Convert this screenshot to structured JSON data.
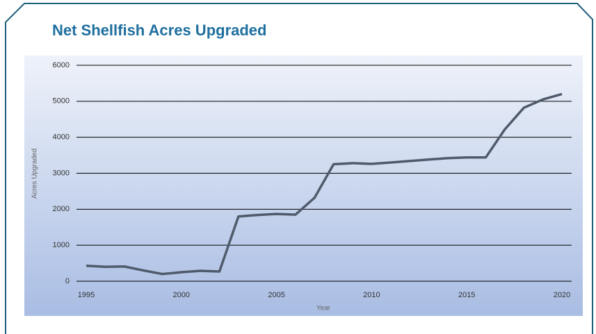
{
  "chart_data": {
    "type": "line",
    "title": "Net Shellfish Acres Upgraded",
    "x_label": "Year",
    "y_label": "Acres Upgraded",
    "x": [
      1995,
      1996,
      1997,
      1998,
      1999,
      2000,
      2001,
      2002,
      2003,
      2004,
      2005,
      2006,
      2007,
      2008,
      2009,
      2010,
      2011,
      2012,
      2013,
      2014,
      2015,
      2016,
      2017,
      2018,
      2019,
      2020
    ],
    "series": [
      {
        "name": "Net Shellfish Acres Upgraded",
        "color": "#4f5a6b",
        "values": [
          430,
          400,
          410,
          300,
          200,
          250,
          290,
          270,
          1800,
          1840,
          1870,
          1850,
          2320,
          3250,
          3280,
          3260,
          3300,
          3340,
          3380,
          3420,
          3440,
          3440,
          4220,
          4820,
          5050,
          5200
        ]
      }
    ],
    "xlim": [
      1995,
      2020
    ],
    "xticks": [
      1995,
      2000,
      2005,
      2010,
      2015,
      2020
    ],
    "ylim": [
      0,
      6000
    ],
    "yticks": [
      0,
      1000,
      2000,
      3000,
      4000,
      5000,
      6000
    ],
    "grid": true
  }
}
